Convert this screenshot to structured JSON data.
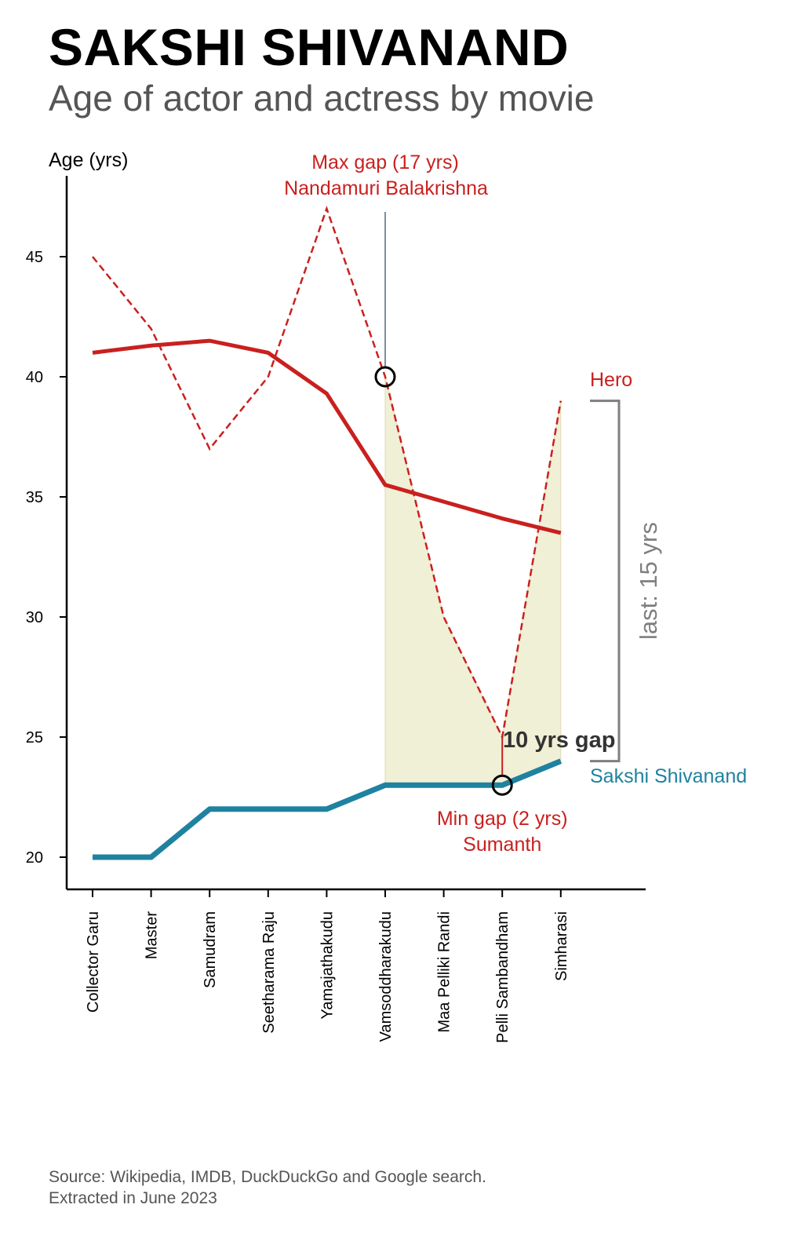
{
  "header": {
    "title": "SAKSHI SHIVANAND",
    "subtitle": "Age of actor and actress by movie"
  },
  "footer": {
    "source_line1": "Source: Wikipedia, IMDB, DuckDuckGo and Google search.",
    "source_line2": "Extracted in June 2023"
  },
  "chart_data": {
    "type": "line",
    "ylabel": "Age (yrs)",
    "xlabel": "",
    "ylim": [
      18.7,
      48.5
    ],
    "yticks": [
      20,
      25,
      30,
      35,
      40,
      45
    ],
    "grid": false,
    "categories": [
      "Collector Garu",
      "Master",
      "Samudram",
      "Seetharama Raju",
      "Yamajathakudu",
      "Vamsoddharakudu",
      "Maa Pelliki Randi",
      "Pelli Sambandham",
      "Simharasi"
    ],
    "series": [
      {
        "name": "Hero",
        "style": "dashed",
        "color": "#c9201e",
        "values": [
          45,
          42,
          37,
          40,
          47,
          40,
          30,
          25,
          39
        ]
      },
      {
        "name": "",
        "style": "trend",
        "color": "#c9201e",
        "values": [
          41.0,
          41.3,
          41.5,
          41.0,
          39.3,
          35.5,
          34.8,
          34.1,
          33.5
        ]
      },
      {
        "name": "Sakshi Shivanand",
        "style": "solid",
        "color": "#1f82a0",
        "values": [
          20,
          20,
          22,
          22,
          22,
          23,
          23,
          23,
          24
        ]
      }
    ],
    "shaded_range": {
      "from": "Vamsoddharakudu",
      "to": "Simharasi",
      "color": "#f0f0d6"
    },
    "annotations": {
      "max_gap": {
        "line1": "Max gap (17 yrs)",
        "line2": "Nandamuri Balakrishna",
        "category": "Vamsoddharakudu",
        "value": 40
      },
      "min_gap": {
        "line1": "Min gap (2 yrs)",
        "line2": "Sumanth",
        "category": "Pelli Sambandham",
        "value": 23
      },
      "last_gap_label": "10 yrs gap",
      "bracket_label": "last: 15 yrs",
      "bracket_range": [
        24,
        39
      ],
      "hero_label": "Hero",
      "actress_label": "Sakshi Shivanand"
    },
    "colors": {
      "hero": "#c9201e",
      "actress": "#1f82a0",
      "bracket": "#7f7f7f",
      "shade": "#f0f0d6"
    }
  }
}
